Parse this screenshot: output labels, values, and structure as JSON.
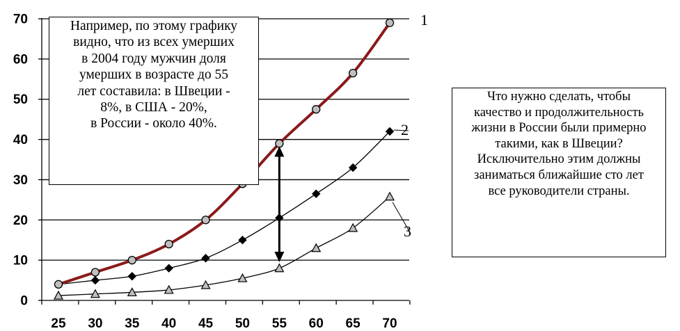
{
  "chart_data": {
    "type": "line",
    "x": [
      25,
      30,
      35,
      40,
      45,
      50,
      55,
      60,
      65,
      70
    ],
    "xlim": [
      25,
      70
    ],
    "ylim": [
      0,
      70
    ],
    "y_ticks": [
      0,
      10,
      20,
      30,
      40,
      50,
      60,
      70
    ],
    "x_tick_labels": [
      "25",
      "30",
      "35",
      "40",
      "45",
      "50",
      "55",
      "60",
      "65",
      "70"
    ],
    "y_tick_labels": [
      "0",
      "10",
      "20",
      "30",
      "40",
      "50",
      "60",
      "70"
    ],
    "grid": "horizontal",
    "series": [
      {
        "name": "1",
        "values": [
          4,
          7,
          10,
          14,
          20,
          29,
          39,
          47.5,
          56.5,
          69
        ],
        "color": "#8B1A1A",
        "marker": "circle",
        "marker_color": "#BFBFBF"
      },
      {
        "name": "2",
        "values": [
          4,
          5,
          6,
          8,
          10.5,
          15,
          20.5,
          26.5,
          33,
          42
        ],
        "color": "#000000",
        "marker": "diamond",
        "marker_color": "#000000"
      },
      {
        "name": "3",
        "values": [
          1.2,
          1.6,
          2,
          2.6,
          3.8,
          5.5,
          8,
          13,
          18,
          25.8
        ],
        "color": "#000000",
        "marker": "triangle",
        "marker_color": "#BFBFBF"
      }
    ],
    "annotation_arrow": {
      "x": 55,
      "from": 39,
      "to": 9.5
    }
  },
  "notes": {
    "left": [
      "Например, по этому графику",
      "видно, что из всех умерших",
      "в 2004 году мужчин доля",
      "умерших в возрасте до 55",
      "лет составила: в Швеции -",
      "8%, в США - 20%,",
      "в России - около  40%."
    ],
    "right": [
      "Что нужно сделать, чтобы",
      "качество и продолжительность",
      "жизни в России были примерно",
      "такими, как в Швеции?",
      "Исключительно этим должны",
      "заниматься ближайшие сто лет",
      "все руководители страны."
    ]
  }
}
